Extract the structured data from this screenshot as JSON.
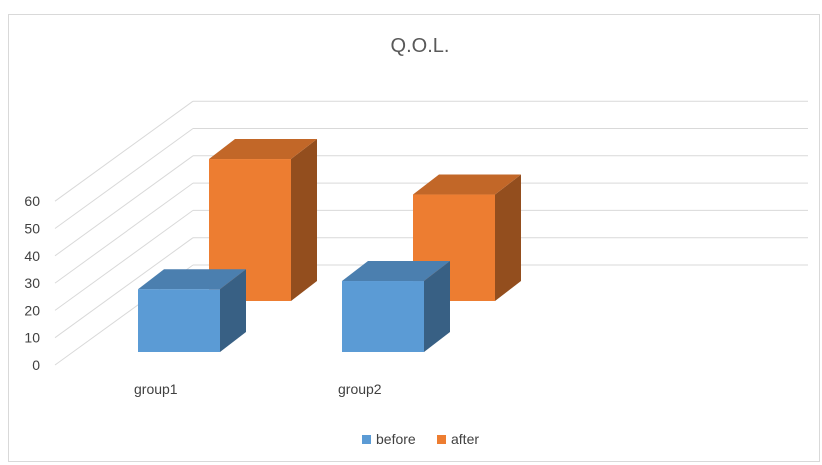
{
  "chart_data": {
    "type": "bar",
    "style": "3d-clustered-column",
    "title": "Q.O.L.",
    "xlabel": "",
    "ylabel": "",
    "categories": [
      "group1",
      "group2"
    ],
    "series": [
      {
        "name": "before",
        "values": [
          23,
          26
        ],
        "color": "#5b9bd5"
      },
      {
        "name": "after",
        "values": [
          52,
          39
        ],
        "color": "#ed7d31"
      }
    ],
    "ylim": [
      0,
      60
    ],
    "yticks": [
      0,
      10,
      20,
      30,
      40,
      50,
      60
    ],
    "grid": true,
    "legend": "bottom-center"
  }
}
